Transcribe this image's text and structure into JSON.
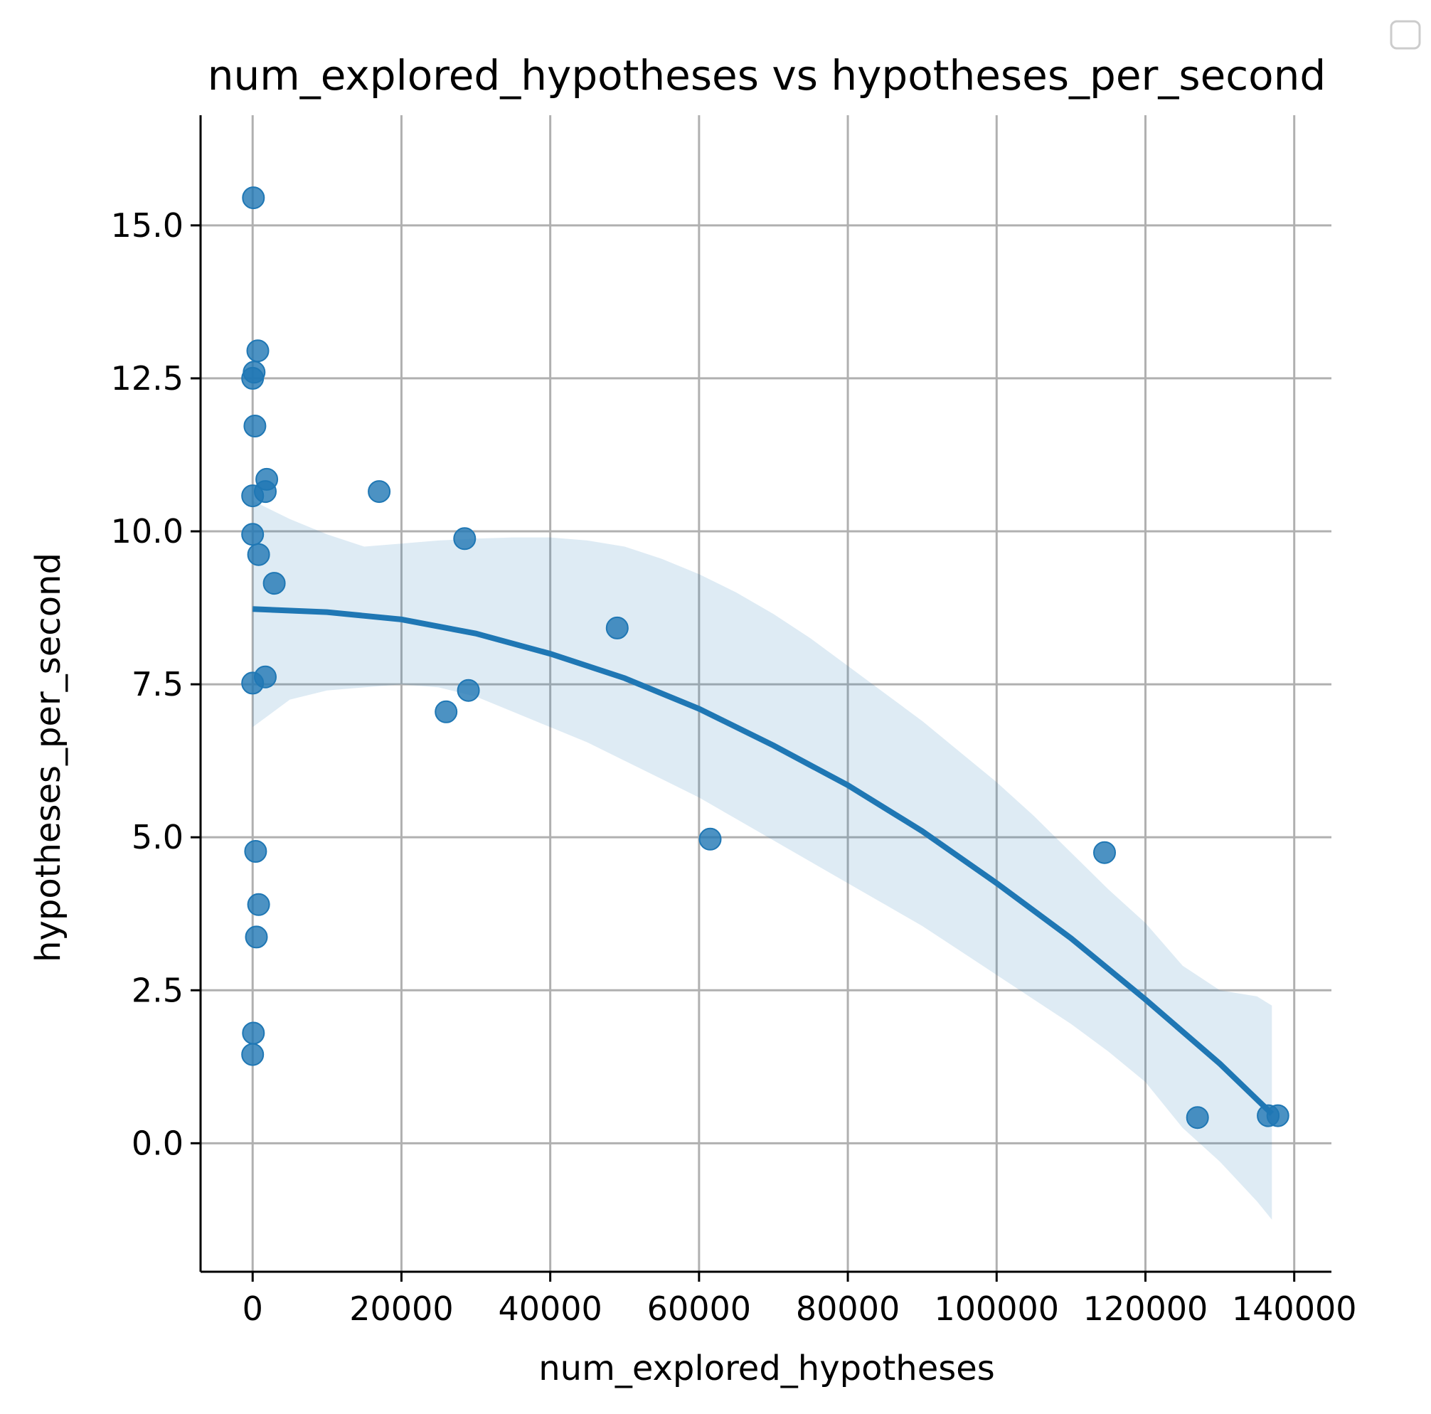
{
  "chart_data": {
    "type": "scatter",
    "title": "num_explored_hypotheses vs hypotheses_per_second",
    "xlabel": "num_explored_hypotheses",
    "ylabel": "hypotheses_per_second",
    "xlim": [
      -7000,
      145000
    ],
    "ylim": [
      -2.1,
      16.8
    ],
    "x_ticks": [
      0,
      20000,
      40000,
      60000,
      80000,
      100000,
      120000,
      140000
    ],
    "x_tick_labels": [
      "0",
      "20000",
      "40000",
      "60000",
      "80000",
      "100000",
      "120000",
      "140000"
    ],
    "y_ticks": [
      0.0,
      2.5,
      5.0,
      7.5,
      10.0,
      12.5,
      15.0
    ],
    "y_tick_labels": [
      "0.0",
      "2.5",
      "5.0",
      "7.5",
      "10.0",
      "12.5",
      "15.0"
    ],
    "grid": true,
    "legend": "top-right",
    "colors": {
      "points": "#1f77b4",
      "fit": "#1f77b4",
      "band": "#1f77b4"
    },
    "points": [
      {
        "x": 100,
        "y": 15.45
      },
      {
        "x": 700,
        "y": 12.95
      },
      {
        "x": 200,
        "y": 12.6
      },
      {
        "x": 0,
        "y": 12.5
      },
      {
        "x": 300,
        "y": 11.72
      },
      {
        "x": 1900,
        "y": 10.85
      },
      {
        "x": 1700,
        "y": 10.65
      },
      {
        "x": 0,
        "y": 10.58
      },
      {
        "x": 17000,
        "y": 10.65
      },
      {
        "x": 28500,
        "y": 9.88
      },
      {
        "x": 0,
        "y": 9.95
      },
      {
        "x": 800,
        "y": 9.62
      },
      {
        "x": 2900,
        "y": 9.15
      },
      {
        "x": 49000,
        "y": 8.42
      },
      {
        "x": 1700,
        "y": 7.62
      },
      {
        "x": 0,
        "y": 7.52
      },
      {
        "x": 29000,
        "y": 7.4
      },
      {
        "x": 26000,
        "y": 7.05
      },
      {
        "x": 61500,
        "y": 4.97
      },
      {
        "x": 114500,
        "y": 4.75
      },
      {
        "x": 400,
        "y": 4.77
      },
      {
        "x": 800,
        "y": 3.9
      },
      {
        "x": 500,
        "y": 3.37
      },
      {
        "x": 100,
        "y": 1.8
      },
      {
        "x": 0,
        "y": 1.45
      },
      {
        "x": 127000,
        "y": 0.42
      },
      {
        "x": 136500,
        "y": 0.45
      },
      {
        "x": 137800,
        "y": 0.45
      }
    ],
    "fit_line": {
      "x": [
        0,
        10000,
        20000,
        30000,
        40000,
        50000,
        60000,
        70000,
        80000,
        90000,
        100000,
        110000,
        120000,
        130000,
        137000
      ],
      "y": [
        8.73,
        8.68,
        8.56,
        8.33,
        8.0,
        7.6,
        7.1,
        6.5,
        5.85,
        5.1,
        4.25,
        3.35,
        2.35,
        1.3,
        0.48
      ]
    },
    "ci_band": {
      "x": [
        0,
        5000,
        10000,
        15000,
        20000,
        25000,
        30000,
        35000,
        40000,
        45000,
        50000,
        55000,
        60000,
        65000,
        70000,
        75000,
        80000,
        85000,
        90000,
        95000,
        100000,
        105000,
        110000,
        115000,
        120000,
        125000,
        130000,
        135000,
        137000
      ],
      "upper": [
        10.5,
        10.2,
        9.95,
        9.75,
        9.8,
        9.85,
        9.88,
        9.9,
        9.9,
        9.85,
        9.75,
        9.55,
        9.3,
        9.0,
        8.65,
        8.25,
        7.8,
        7.35,
        6.9,
        6.4,
        5.9,
        5.35,
        4.75,
        4.15,
        3.6,
        2.9,
        2.5,
        2.4,
        2.25
      ],
      "lower": [
        6.8,
        7.25,
        7.4,
        7.45,
        7.5,
        7.45,
        7.3,
        7.05,
        6.8,
        6.55,
        6.25,
        5.95,
        5.65,
        5.3,
        4.95,
        4.6,
        4.25,
        3.9,
        3.55,
        3.15,
        2.75,
        2.35,
        1.95,
        1.5,
        1.0,
        0.25,
        -0.3,
        -0.95,
        -1.25
      ]
    }
  }
}
